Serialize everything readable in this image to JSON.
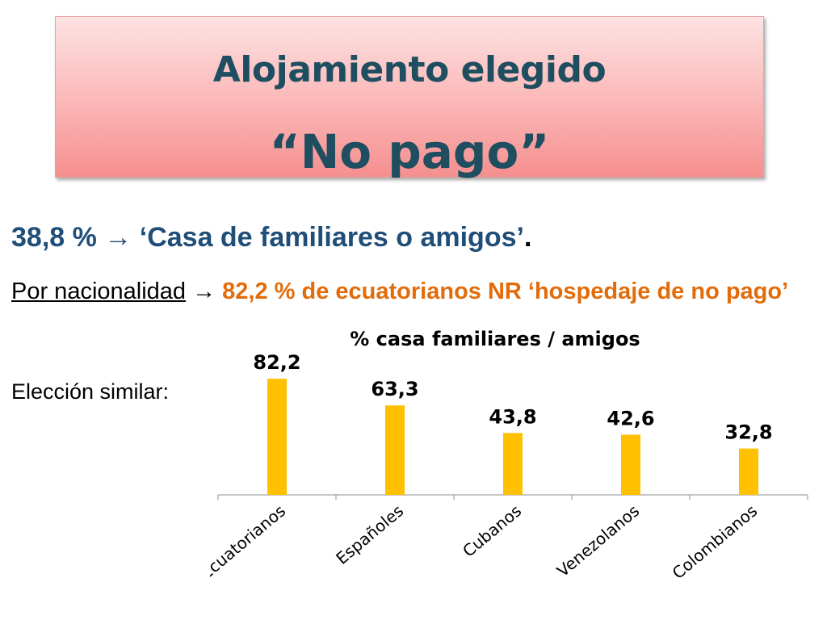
{
  "title": {
    "line1": "Alojamiento elegido",
    "line2": "“No pago”"
  },
  "stat": {
    "text": "38,8 % → ‘Casa de familiares o amigos’",
    "period": "."
  },
  "nationality": {
    "label": "Por nacionalidad",
    "arrow": "→",
    "value": "82,2 % de ecuatorianos NR ‘hospedaje de no pago’"
  },
  "similar_label": "Elección similar:",
  "colors": {
    "title_text": "#1f4e60",
    "stat_text": "#1f4e79",
    "highlight": "#e36c0a",
    "bar": "#ffc000"
  },
  "chart_data": {
    "type": "bar",
    "title": "% casa familiares / amigos",
    "categories": [
      "Ecuatorianos",
      "Españoles",
      "Cubanos",
      "Venezolanos",
      "Colombianos"
    ],
    "values": [
      82.2,
      63.3,
      43.8,
      42.6,
      32.8
    ],
    "value_labels": [
      "82,2",
      "63,3",
      "43,8",
      "42,6",
      "32,8"
    ],
    "xlabel": "",
    "ylabel": "",
    "ylim": [
      0,
      100
    ],
    "grid": false,
    "legend": "none"
  }
}
